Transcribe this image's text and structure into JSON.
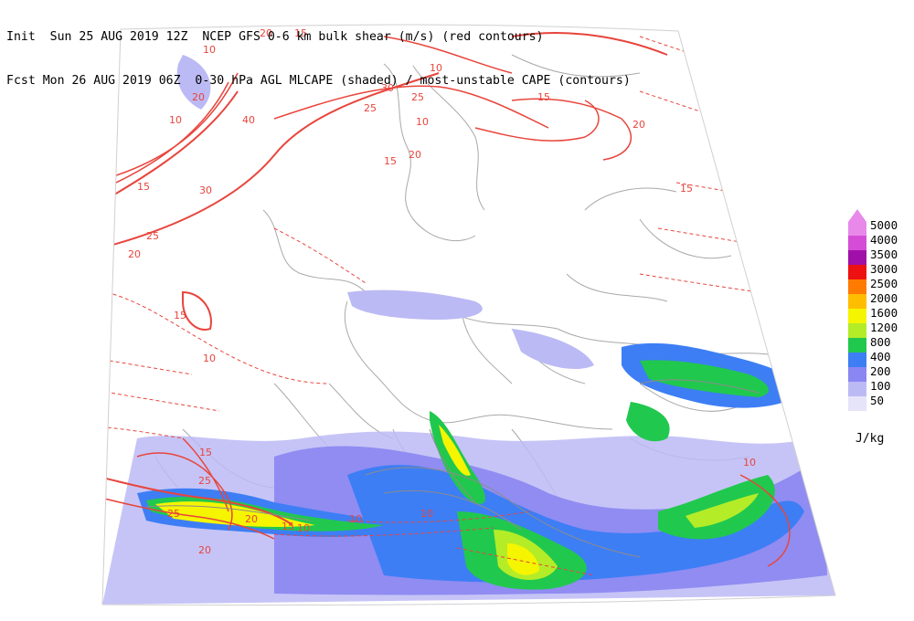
{
  "header": {
    "line1": "Init  Sun 25 AUG 2019 12Z  NCEP GFS 0-6 km bulk shear (m/s) (red contours)",
    "line2": "Fcst Mon 26 AUG 2019 06Z  0-30 hPa AGL MLCAPE (shaded) / most-unstable CAPE (contours)"
  },
  "legend": {
    "unit": "J/kg",
    "levels": [
      {
        "label": "5000",
        "color": "#e889ea"
      },
      {
        "label": "4000",
        "color": "#d54dd6"
      },
      {
        "label": "3500",
        "color": "#a010a8"
      },
      {
        "label": "3000",
        "color": "#ee1111"
      },
      {
        "label": "2500",
        "color": "#ff7a00"
      },
      {
        "label": "2000",
        "color": "#ffbd00"
      },
      {
        "label": "1600",
        "color": "#f5f500"
      },
      {
        "label": "1200",
        "color": "#b4ec28"
      },
      {
        "label": "800",
        "color": "#21c84e"
      },
      {
        "label": "400",
        "color": "#3d7ef5"
      },
      {
        "label": "200",
        "color": "#8a86f2"
      },
      {
        "label": "100",
        "color": "#bcbaf4"
      },
      {
        "label": "50",
        "color": "#e6e4f8"
      }
    ]
  },
  "shear_labels": [
    "10",
    "15",
    "20",
    "25",
    "30",
    "35",
    "40",
    "20",
    "15",
    "10",
    "10",
    "15",
    "20",
    "25",
    "15",
    "10",
    "10",
    "15",
    "20",
    "30",
    "25",
    "20",
    "15",
    "10",
    "10",
    "15",
    "25",
    "25",
    "20",
    "20",
    "15",
    "10",
    "10",
    "10",
    "15",
    "20",
    "10"
  ]
}
